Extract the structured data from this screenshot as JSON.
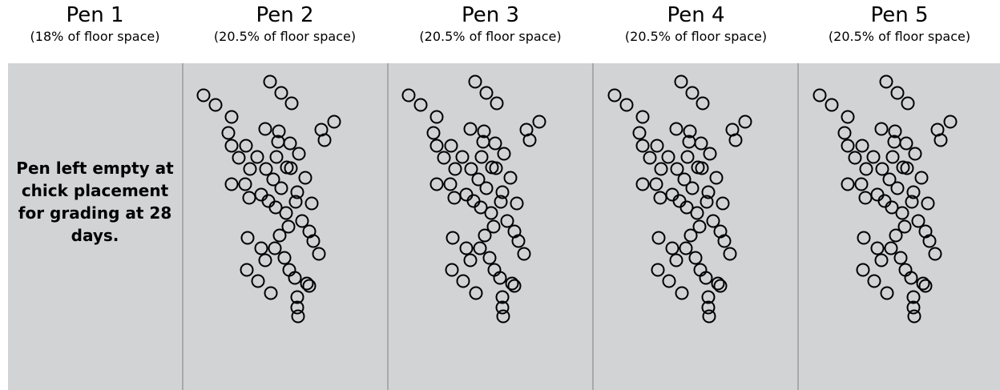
{
  "pens": [
    {
      "title": "Pen 1",
      "floor_space": "(18% of floor space)",
      "note": "Pen left empty at chick placement for grading at 28 days."
    },
    {
      "title": "Pen 2",
      "floor_space": "(20.5% of floor space)"
    },
    {
      "title": "Pen 3",
      "floor_space": "(20.5% of floor space)"
    },
    {
      "title": "Pen 4",
      "floor_space": "(20.5% of floor space)"
    },
    {
      "title": "Pen 5",
      "floor_space": "(20.5% of floor space)"
    }
  ],
  "chick_icon": "circle-outline-icon",
  "colors": {
    "floor": "#d1d3d4",
    "divider": "#a7a9ac",
    "chick_outline": "#000000"
  }
}
